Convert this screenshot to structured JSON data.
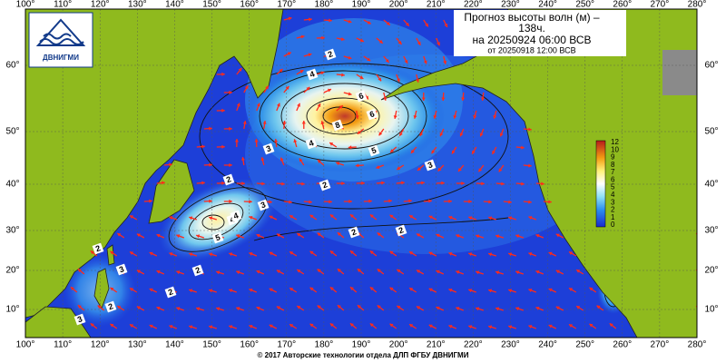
{
  "header": {
    "title_line1": "Прогноз высоты волн (м) –",
    "title_line2": "138ч.",
    "valid_time": "на 20250924 06:00 ВСВ",
    "issued_time": "от 20250918 12:00 ВСВ"
  },
  "logo": {
    "label": "ДВНИГМИ"
  },
  "map": {
    "longitude_labels": [
      "100°",
      "110°",
      "120°",
      "130°",
      "140°",
      "150°",
      "160°",
      "170°",
      "180°",
      "190°",
      "200°",
      "210°",
      "220°",
      "230°",
      "240°",
      "250°",
      "260°",
      "270°",
      "280°"
    ],
    "latitude_labels": [
      "60°",
      "50°",
      "40°",
      "30°",
      "20°",
      "10°"
    ],
    "contour_labels": [
      "2",
      "4",
      "6",
      "8",
      "6",
      "4",
      "5",
      "3",
      "4",
      "3",
      "2",
      "4",
      "3",
      "5",
      "2",
      "2",
      "2",
      "3",
      "2",
      "2",
      "2",
      "3",
      "2"
    ]
  },
  "colorbar": {
    "labels": [
      "12",
      "10",
      "9",
      "8",
      "7",
      "6",
      "5",
      "4",
      "3",
      "2",
      "1",
      "0"
    ]
  },
  "footer": {
    "copyright": "© 2017 Авторские технологии отдела ДЛП ФГБУ ДВНИГМИ"
  }
}
